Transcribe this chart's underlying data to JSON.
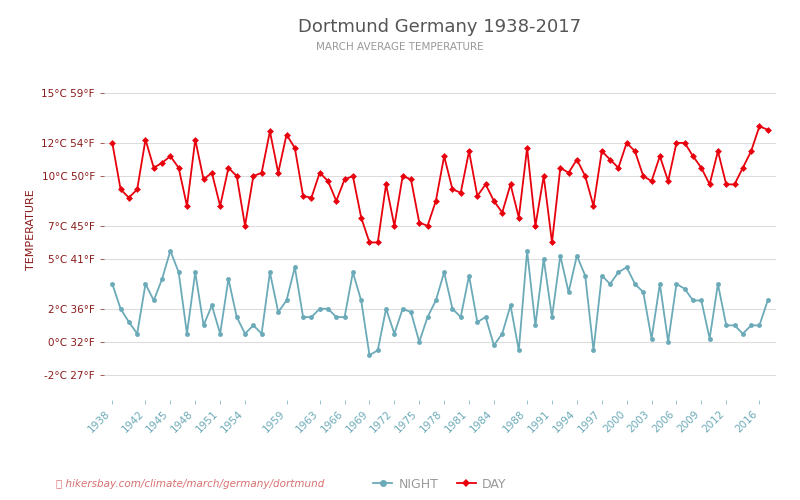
{
  "title": "Dortmund Germany 1938-2017",
  "subtitle": "MARCH AVERAGE TEMPERATURE",
  "ylabel": "TEMPERATURE",
  "watermark": "hikersbay.com/climate/march/germany/dortmund",
  "years": [
    1938,
    1939,
    1940,
    1941,
    1942,
    1943,
    1944,
    1945,
    1946,
    1947,
    1948,
    1949,
    1950,
    1951,
    1952,
    1953,
    1954,
    1955,
    1956,
    1957,
    1958,
    1959,
    1960,
    1961,
    1962,
    1963,
    1964,
    1965,
    1966,
    1967,
    1968,
    1969,
    1970,
    1971,
    1972,
    1973,
    1974,
    1975,
    1976,
    1977,
    1978,
    1979,
    1980,
    1981,
    1982,
    1983,
    1984,
    1985,
    1986,
    1987,
    1988,
    1989,
    1990,
    1991,
    1992,
    1993,
    1994,
    1995,
    1996,
    1997,
    1998,
    1999,
    2000,
    2001,
    2002,
    2003,
    2004,
    2005,
    2006,
    2007,
    2008,
    2009,
    2010,
    2011,
    2012,
    2013,
    2014,
    2015,
    2016,
    2017
  ],
  "day_temps": [
    12.0,
    9.2,
    8.7,
    9.2,
    12.2,
    10.5,
    10.8,
    11.2,
    10.5,
    8.2,
    12.2,
    9.8,
    10.2,
    8.2,
    10.5,
    10.0,
    7.0,
    10.0,
    10.2,
    12.7,
    10.2,
    12.5,
    11.7,
    8.8,
    8.7,
    10.2,
    9.7,
    8.5,
    9.8,
    10.0,
    7.5,
    6.0,
    6.0,
    9.5,
    7.0,
    10.0,
    9.8,
    7.2,
    7.0,
    8.5,
    11.2,
    9.2,
    9.0,
    11.5,
    8.8,
    9.5,
    8.5,
    7.8,
    9.5,
    7.5,
    11.7,
    7.0,
    10.0,
    6.0,
    10.5,
    10.2,
    11.0,
    10.0,
    8.2,
    11.5,
    11.0,
    10.5,
    12.0,
    11.5,
    10.0,
    9.7,
    11.2,
    9.7,
    12.0,
    12.0,
    11.2,
    10.5,
    9.5,
    11.5,
    9.5,
    9.5,
    10.5,
    11.5,
    13.0,
    12.8
  ],
  "night_temps": [
    3.5,
    2.0,
    1.2,
    0.5,
    3.5,
    2.5,
    3.8,
    5.5,
    4.2,
    0.5,
    4.2,
    1.0,
    2.2,
    0.5,
    3.8,
    1.5,
    0.5,
    1.0,
    0.5,
    4.2,
    1.8,
    2.5,
    4.5,
    1.5,
    1.5,
    2.0,
    2.0,
    1.5,
    1.5,
    4.2,
    2.5,
    -0.8,
    -0.5,
    2.0,
    0.5,
    2.0,
    1.8,
    0.0,
    1.5,
    2.5,
    4.2,
    2.0,
    1.5,
    4.0,
    1.2,
    1.5,
    -0.2,
    0.5,
    2.2,
    -0.5,
    5.5,
    1.0,
    5.0,
    1.5,
    5.2,
    3.0,
    5.2,
    4.0,
    -0.5,
    4.0,
    3.5,
    4.2,
    4.5,
    3.5,
    3.0,
    0.2,
    3.5,
    0.0,
    3.5,
    3.2,
    2.5,
    2.5,
    0.2,
    3.5,
    1.0,
    1.0,
    0.5,
    1.0,
    1.0,
    2.5
  ],
  "day_color": "#e8000d",
  "night_color": "#6baab8",
  "title_color": "#555555",
  "subtitle_color": "#999999",
  "ylabel_color": "#8b1a1a",
  "ytick_color": "#8b1a1a",
  "xtick_color": "#6baab8",
  "grid_color": "#dddddd",
  "background_color": "#ffffff",
  "yticks_c": [
    -2,
    0,
    2,
    5,
    7,
    10,
    12,
    15
  ],
  "ytick_labels_c": [
    "-2°C 27°F",
    "0°C 32°F",
    "2°C 36°F",
    "5°C 41°F",
    "7°C 45°F",
    "10°C 50°F",
    "12°C 54°F",
    "15°C 59°F"
  ],
  "ylim": [
    -3.5,
    17.0
  ],
  "xtick_years": [
    1938,
    1942,
    1945,
    1948,
    1951,
    1954,
    1959,
    1963,
    1966,
    1969,
    1972,
    1975,
    1978,
    1981,
    1984,
    1988,
    1991,
    1994,
    1997,
    2000,
    2003,
    2006,
    2009,
    2012,
    2016
  ],
  "watermark_color": "#d87070",
  "legend_night_label": "NIGHT",
  "legend_day_label": "DAY"
}
